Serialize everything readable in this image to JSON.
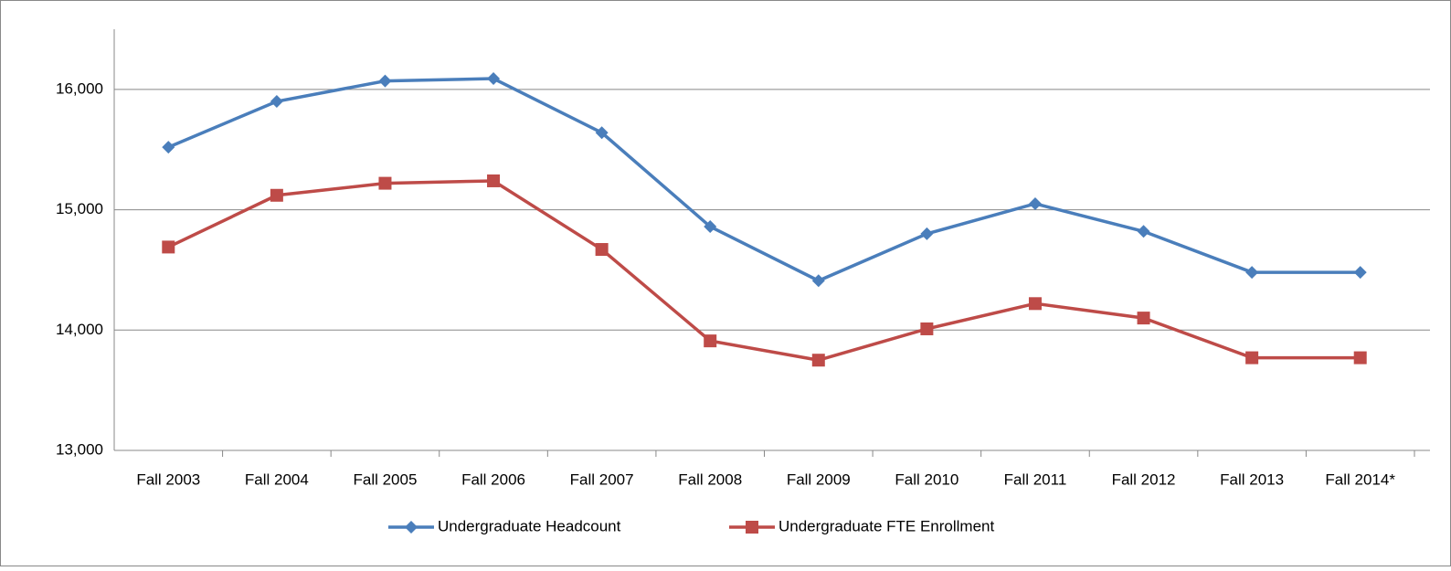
{
  "chart_data": {
    "type": "line",
    "categories": [
      "Fall 2003",
      "Fall 2004",
      "Fall 2005",
      "Fall 2006",
      "Fall 2007",
      "Fall 2008",
      "Fall 2009",
      "Fall 2010",
      "Fall 2011",
      "Fall 2012",
      "Fall 2013",
      "Fall 2014*"
    ],
    "series": [
      {
        "name": "Undergraduate Headcount",
        "color": "#4a7ebb",
        "marker": "diamond",
        "values": [
          15520,
          15900,
          16070,
          16090,
          15640,
          14860,
          14410,
          14800,
          15050,
          14820,
          14480,
          14480
        ]
      },
      {
        "name": "Undergraduate FTE Enrollment",
        "color": "#be4b48",
        "marker": "square",
        "values": [
          14690,
          15120,
          15220,
          15240,
          14670,
          13910,
          13750,
          14010,
          14220,
          14100,
          13770,
          13770
        ]
      }
    ],
    "ylim": [
      13000,
      16500
    ],
    "yticks": [
      {
        "value": 13000,
        "label": "13,000"
      },
      {
        "value": 14000,
        "label": "14,000"
      },
      {
        "value": 15000,
        "label": "15,000"
      },
      {
        "value": 16000,
        "label": "16,000"
      }
    ],
    "grid": true,
    "legend": "bottom"
  }
}
